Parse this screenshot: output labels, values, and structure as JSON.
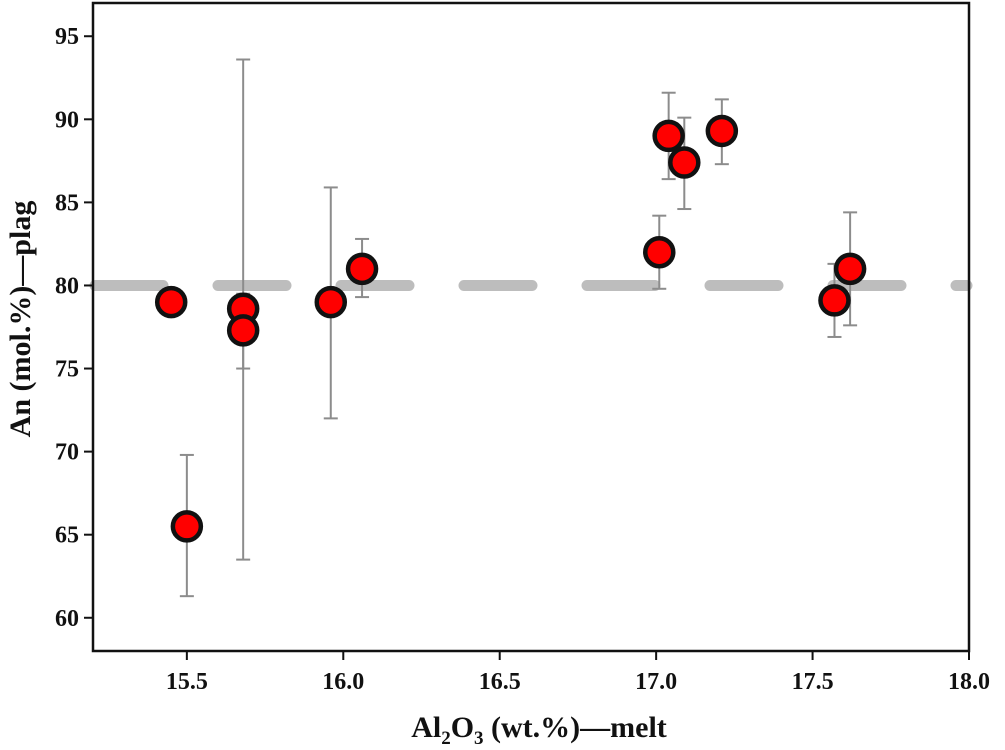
{
  "chart_data": {
    "type": "scatter",
    "title": "",
    "xlabel": {
      "base": "Al",
      "sub1": "2",
      "mid": "O",
      "sub2": "3",
      "rest": " (wt.%)—melt"
    },
    "ylabel": "An (mol.%)—plag",
    "xlim": [
      15.2,
      18.0
    ],
    "ylim": [
      58,
      97
    ],
    "xticks": [
      15.5,
      16.0,
      16.5,
      17.0,
      17.5,
      18.0
    ],
    "xtick_labels": [
      "15.5",
      "16.0",
      "16.5",
      "17.0",
      "17.5",
      "18.0"
    ],
    "yticks": [
      60,
      65,
      70,
      75,
      80,
      85,
      90,
      95
    ],
    "ytick_labels": [
      "60",
      "65",
      "70",
      "75",
      "80",
      "85",
      "90",
      "95"
    ],
    "grid": false,
    "reference_line": {
      "y": 80,
      "style": "dashed",
      "color": "#bdbdbd"
    },
    "points": [
      {
        "x": 15.45,
        "y": 79.0
      },
      {
        "x": 15.5,
        "y": 65.5,
        "ymin": 61.3,
        "ymax": 69.8
      },
      {
        "x": 15.68,
        "y": 78.6,
        "ymin": 63.5,
        "ymax": 93.6
      },
      {
        "x": 15.68,
        "y": 77.3,
        "ymin": 75.0,
        "ymax": 79.5
      },
      {
        "x": 15.96,
        "y": 79.0,
        "ymin": 72.0,
        "ymax": 85.9
      },
      {
        "x": 16.06,
        "y": 81.0,
        "ymin": 79.3,
        "ymax": 82.8
      },
      {
        "x": 17.01,
        "y": 82.0,
        "ymin": 79.8,
        "ymax": 84.2
      },
      {
        "x": 17.04,
        "y": 89.0,
        "ymin": 86.4,
        "ymax": 91.6
      },
      {
        "x": 17.09,
        "y": 87.4,
        "ymin": 84.6,
        "ymax": 90.1
      },
      {
        "x": 17.21,
        "y": 89.3,
        "ymin": 87.3,
        "ymax": 91.2
      },
      {
        "x": 17.57,
        "y": 79.1,
        "ymin": 76.9,
        "ymax": 81.3
      },
      {
        "x": 17.62,
        "y": 81.0,
        "ymin": 77.6,
        "ymax": 84.4
      }
    ],
    "colors": {
      "marker_fill": "#ff0000",
      "marker_edge": "#111111",
      "error_bar": "#8c8c8c",
      "axis": "#111111"
    }
  }
}
